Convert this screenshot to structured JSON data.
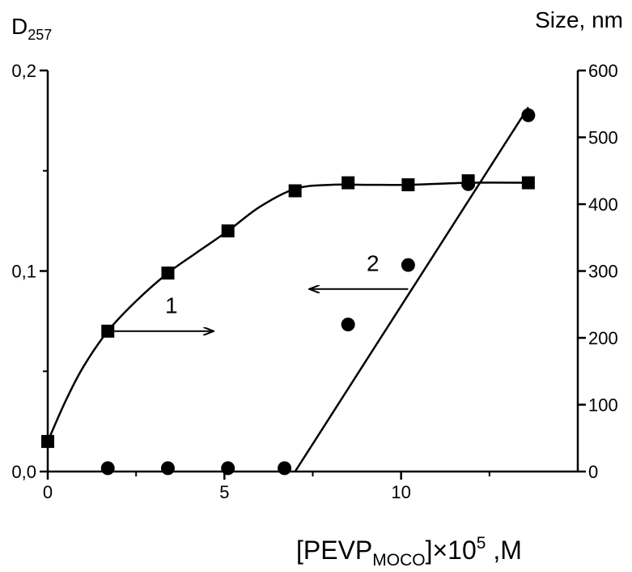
{
  "chart_data": {
    "type": "scatter",
    "xlabel": {
      "main": "[PEVP",
      "sub": "MOCO",
      "mid": "]×10",
      "sup": "5",
      "tail": " ,M"
    },
    "ylabel_left": {
      "main": "D",
      "sub": "257"
    },
    "ylabel_right": "Size, nm",
    "xlim": [
      0,
      15
    ],
    "ylim_left": [
      0,
      0.2
    ],
    "ylim_right": [
      0,
      600
    ],
    "x_ticks": [
      {
        "value": 0,
        "label": "0"
      },
      {
        "value": 5,
        "label": "5"
      },
      {
        "value": 10,
        "label": "10"
      }
    ],
    "y_left_ticks": [
      {
        "value": 0,
        "label": "0,0"
      },
      {
        "value": 0.1,
        "label": "0,1"
      },
      {
        "value": 0.2,
        "label": "0,2"
      }
    ],
    "y_right_ticks": [
      {
        "value": 0,
        "label": "0"
      },
      {
        "value": 100,
        "label": "100"
      },
      {
        "value": 200,
        "label": "200"
      },
      {
        "value": 300,
        "label": "300"
      },
      {
        "value": 400,
        "label": "400"
      },
      {
        "value": 500,
        "label": "500"
      },
      {
        "value": 600,
        "label": "600"
      }
    ],
    "series": [
      {
        "marker": "square",
        "axis": "left",
        "x": [
          0,
          1.7,
          3.4,
          5.1,
          7.0,
          8.5,
          10.2,
          11.9,
          13.6
        ],
        "y": [
          0.015,
          0.07,
          0.099,
          0.12,
          0.14,
          0.144,
          0.143,
          0.145,
          0.144
        ],
        "curve_x": [
          0,
          0.5,
          1.0,
          1.7,
          2.5,
          3.4,
          4.2,
          5.1,
          6.0,
          7.0,
          8.0,
          9.0,
          10.2,
          11.9,
          13.6
        ],
        "curve_y": [
          0.015,
          0.035,
          0.052,
          0.07,
          0.085,
          0.099,
          0.109,
          0.12,
          0.132,
          0.141,
          0.143,
          0.143,
          0.143,
          0.144,
          0.144
        ]
      },
      {
        "marker": "circle",
        "axis": "right",
        "x": [
          1.7,
          3.4,
          5.1,
          6.7,
          8.5,
          10.2,
          11.9,
          13.6
        ],
        "y": [
          5,
          5,
          5,
          5,
          220,
          309,
          430,
          533
        ],
        "curve_x": [
          7.0,
          13.6
        ],
        "curve_y": [
          0,
          545
        ]
      }
    ],
    "annotations": [
      {
        "text": "1",
        "x": 3.5,
        "y": 0.079,
        "arrow_from": [
          1.7,
          0.07
        ],
        "arrow_to": [
          4.7,
          0.07
        ]
      },
      {
        "text": "2",
        "x": 9.2,
        "y": 0.1,
        "arrow_from": [
          10.2,
          0.091
        ],
        "arrow_to": [
          7.4,
          0.091
        ]
      }
    ]
  }
}
